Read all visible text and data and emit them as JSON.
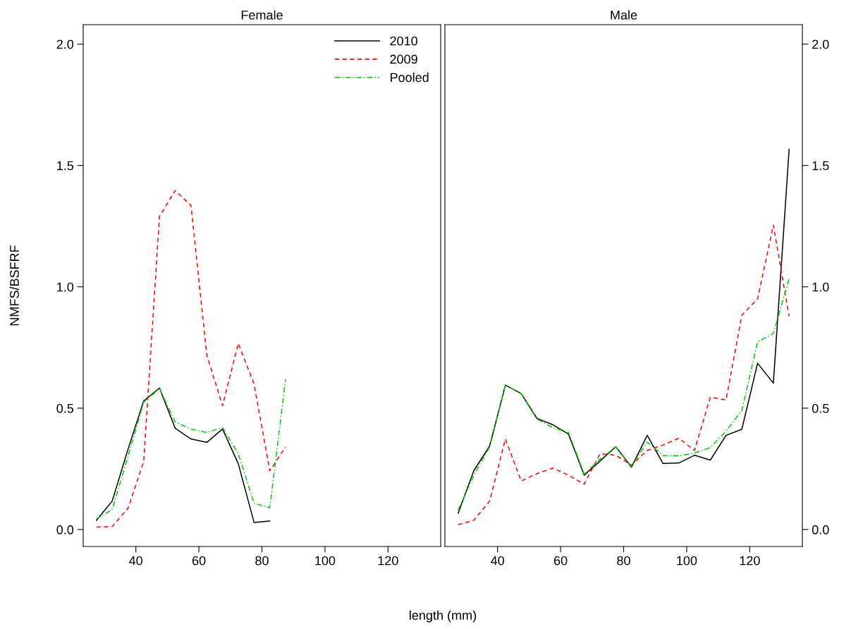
{
  "chart_data": [
    {
      "type": "line",
      "title": "Female",
      "xlabel": "length (mm)",
      "ylabel": "NMFS/BSFRF",
      "xlim": [
        23.3,
        136.7
      ],
      "ylim": [
        -0.07,
        2.08
      ],
      "xticks": [
        40,
        60,
        80,
        100,
        120
      ],
      "yticks": [
        {
          "value": 0,
          "label": "0.0"
        },
        {
          "value": 0.5,
          "label": "0.5"
        },
        {
          "value": 1,
          "label": "1.0"
        },
        {
          "value": 1.5,
          "label": "1.5"
        },
        {
          "value": 2,
          "label": "2.0"
        }
      ],
      "grid": false,
      "legend": "top right",
      "marker": "none",
      "series": [
        {
          "name": "2010",
          "color": "#000000",
          "line_style": "solid",
          "x": [
            27.5,
            32.5,
            37.5,
            42.5,
            47.5,
            52.5,
            57.5,
            62.5,
            67.5,
            72.5,
            77.5,
            82.5
          ],
          "values": [
            0.038,
            0.117,
            0.33,
            0.53,
            0.583,
            0.417,
            0.373,
            0.359,
            0.414,
            0.271,
            0.029,
            0.035
          ]
        },
        {
          "name": "2009",
          "color": "#ff0000",
          "line_style": "dashed",
          "x": [
            27.5,
            32.5,
            37.5,
            42.5,
            47.5,
            52.5,
            57.5,
            62.5,
            67.5,
            72.5,
            77.5,
            82.5,
            87.5
          ],
          "values": [
            0.01,
            0.012,
            0.087,
            0.28,
            1.29,
            1.397,
            1.335,
            0.72,
            0.51,
            0.767,
            0.6,
            0.242,
            0.34
          ]
        },
        {
          "name": "Pooled",
          "color": "#00cc00",
          "line_style": "dashdot",
          "x": [
            27.5,
            32.5,
            37.5,
            42.5,
            47.5,
            52.5,
            57.5,
            62.5,
            67.5,
            72.5,
            77.5,
            82.5,
            87.5
          ],
          "values": [
            0.044,
            0.082,
            0.3,
            0.525,
            0.58,
            0.443,
            0.414,
            0.4,
            0.42,
            0.312,
            0.108,
            0.09,
            0.618
          ]
        }
      ]
    },
    {
      "type": "line",
      "title": "Male",
      "xlim": [
        23.3,
        136.7
      ],
      "ylim": [
        -0.07,
        2.08
      ],
      "xticks": [
        40,
        60,
        80,
        100,
        120
      ],
      "yticks": [
        {
          "value": 0,
          "label": "0.0"
        },
        {
          "value": 0.5,
          "label": "0.5"
        },
        {
          "value": 1,
          "label": "1.0"
        },
        {
          "value": 1.5,
          "label": "1.5"
        },
        {
          "value": 2,
          "label": "2.0"
        }
      ],
      "grid": false,
      "marker": "none",
      "series": [
        {
          "color": "#000000",
          "line_style": "solid",
          "x": [
            27.5,
            32.5,
            37.5,
            42.5,
            47.5,
            52.5,
            57.5,
            62.5,
            67.5,
            72.5,
            77.5,
            82.5,
            87.5,
            92.5,
            97.5,
            102.5,
            107.5,
            112.5,
            117.5,
            122.5,
            127.5,
            132.5
          ],
          "values": [
            0.067,
            0.243,
            0.344,
            0.595,
            0.56,
            0.458,
            0.432,
            0.393,
            0.224,
            0.282,
            0.341,
            0.257,
            0.388,
            0.272,
            0.274,
            0.306,
            0.286,
            0.388,
            0.413,
            0.685,
            0.603,
            1.566
          ]
        },
        {
          "color": "#ff0000",
          "line_style": "dashed",
          "x": [
            27.5,
            32.5,
            37.5,
            42.5,
            47.5,
            52.5,
            57.5,
            62.5,
            67.5,
            72.5,
            77.5,
            82.5,
            87.5,
            92.5,
            97.5,
            102.5,
            107.5,
            112.5,
            117.5,
            122.5,
            127.5,
            132.5
          ],
          "values": [
            0.02,
            0.038,
            0.117,
            0.373,
            0.2,
            0.23,
            0.253,
            0.224,
            0.187,
            0.312,
            0.306,
            0.265,
            0.326,
            0.348,
            0.376,
            0.326,
            0.545,
            0.534,
            0.883,
            0.95,
            1.254,
            0.878
          ]
        },
        {
          "color": "#00cc00",
          "line_style": "dashdot",
          "x": [
            27.5,
            32.5,
            37.5,
            42.5,
            47.5,
            52.5,
            57.5,
            62.5,
            67.5,
            72.5,
            77.5,
            82.5,
            87.5,
            92.5,
            97.5,
            102.5,
            107.5,
            112.5,
            117.5,
            122.5,
            127.5,
            132.5
          ],
          "values": [
            0.08,
            0.224,
            0.34,
            0.595,
            0.56,
            0.455,
            0.42,
            0.4,
            0.228,
            0.29,
            0.34,
            0.26,
            0.36,
            0.305,
            0.303,
            0.315,
            0.338,
            0.405,
            0.49,
            0.773,
            0.808,
            1.032
          ]
        }
      ]
    }
  ]
}
